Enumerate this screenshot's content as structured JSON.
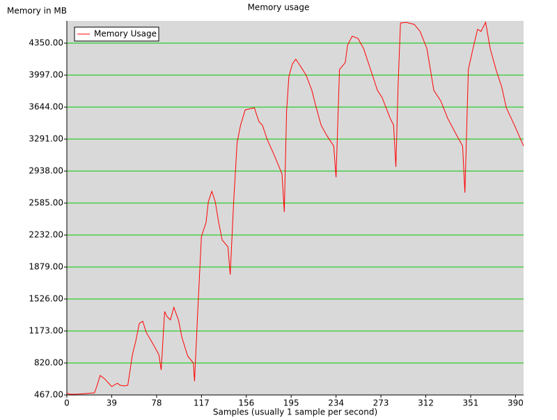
{
  "chart_data": {
    "type": "line",
    "title": "Memory usage",
    "ylabel": "Memory in MB",
    "xlabel": "Samples (usually 1 sample per second)",
    "xlim": [
      0,
      397
    ],
    "ylim": [
      467,
      4596
    ],
    "xticks": [
      0,
      39,
      78,
      117,
      156,
      195,
      234,
      273,
      312,
      351,
      390
    ],
    "yticks": [
      {
        "value": 467,
        "label": "467.00"
      },
      {
        "value": 820,
        "label": "820.00"
      },
      {
        "value": 1173,
        "label": "1173.00"
      },
      {
        "value": 1526,
        "label": "1526.00"
      },
      {
        "value": 1879,
        "label": "1879.00"
      },
      {
        "value": 2232,
        "label": "2232.00"
      },
      {
        "value": 2585,
        "label": "2585.00"
      },
      {
        "value": 2938,
        "label": "2938.00"
      },
      {
        "value": 3291,
        "label": "3291.00"
      },
      {
        "value": 3644,
        "label": "3644.00"
      },
      {
        "value": 3997,
        "label": "3997.00"
      },
      {
        "value": 4350,
        "label": "4350.00"
      }
    ],
    "grid": true,
    "grid_color": "#00cc00",
    "legend": "upper left",
    "x": [
      0,
      2,
      8,
      24,
      26,
      29,
      33,
      39,
      44,
      46,
      50,
      53,
      57,
      60,
      63,
      66,
      69,
      75,
      80,
      82,
      85,
      87,
      90,
      93,
      97,
      100,
      105,
      110,
      111,
      114,
      117,
      121,
      123,
      126,
      129,
      132,
      135,
      140,
      142,
      145,
      148,
      151,
      155,
      160,
      163,
      167,
      170,
      174,
      180,
      187,
      189,
      191,
      193,
      196,
      199,
      203,
      208,
      213,
      216,
      221,
      226,
      232,
      234,
      237,
      242,
      244,
      248,
      253,
      258,
      264,
      270,
      274,
      281,
      284,
      286,
      288,
      290,
      295,
      302,
      307,
      313,
      319,
      325,
      331,
      339,
      344,
      346,
      349,
      353,
      357,
      360,
      364,
      368,
      373,
      378,
      382,
      389,
      393,
      397
    ],
    "series": [
      {
        "name": "Memory Usage",
        "color": "#ff0000",
        "values": [
          490,
          475,
          475,
          490,
          560,
          682,
          643,
          560,
          597,
          575,
          567,
          575,
          912,
          1066,
          1257,
          1280,
          1158,
          1027,
          912,
          743,
          1388,
          1334,
          1296,
          1434,
          1296,
          1104,
          897,
          820,
          620,
          1449,
          2217,
          2370,
          2600,
          2715,
          2600,
          2370,
          2178,
          2102,
          1795,
          2600,
          3253,
          3445,
          3613,
          3628,
          3636,
          3483,
          3445,
          3291,
          3122,
          2907,
          2485,
          3598,
          3981,
          4120,
          4173,
          4097,
          3997,
          3828,
          3675,
          3445,
          3330,
          3215,
          2869,
          4059,
          4135,
          4327,
          4427,
          4403,
          4289,
          4059,
          3828,
          3751,
          3521,
          3445,
          2984,
          3905,
          4572,
          4580,
          4557,
          4480,
          4289,
          3828,
          3713,
          3521,
          3330,
          3215,
          2700,
          4059,
          4289,
          4503,
          4480,
          4580,
          4289,
          4059,
          3866,
          3636,
          3445,
          3330,
          3215
        ]
      }
    ]
  }
}
